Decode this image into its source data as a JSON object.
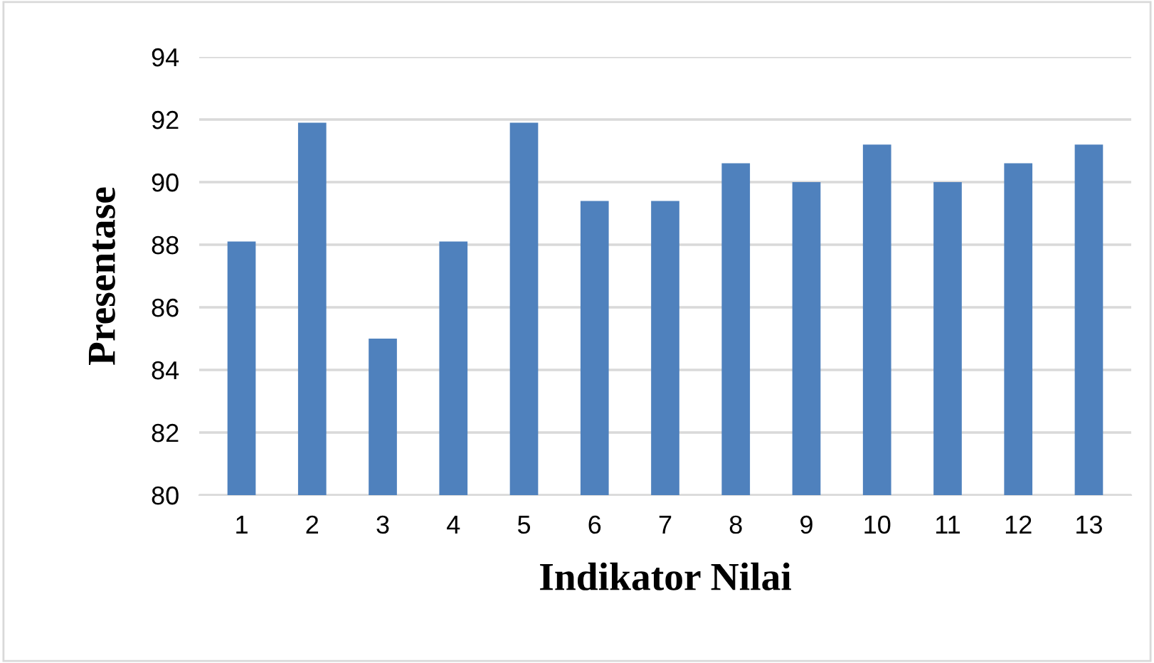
{
  "chart_data": {
    "type": "bar",
    "xlabel": "Indikator Nilai",
    "ylabel": "Presentase",
    "categories": [
      "1",
      "2",
      "3",
      "4",
      "5",
      "6",
      "7",
      "8",
      "9",
      "10",
      "11",
      "12",
      "13"
    ],
    "values": [
      88.1,
      91.9,
      85.0,
      88.1,
      91.9,
      89.4,
      89.4,
      90.6,
      90.0,
      91.2,
      90.0,
      90.6,
      91.2
    ],
    "color": "#4f81bd",
    "ylim": [
      80,
      94
    ],
    "yticks": [
      80,
      82,
      84,
      86,
      88,
      90,
      92,
      94
    ],
    "grid": "y",
    "legend": false
  }
}
